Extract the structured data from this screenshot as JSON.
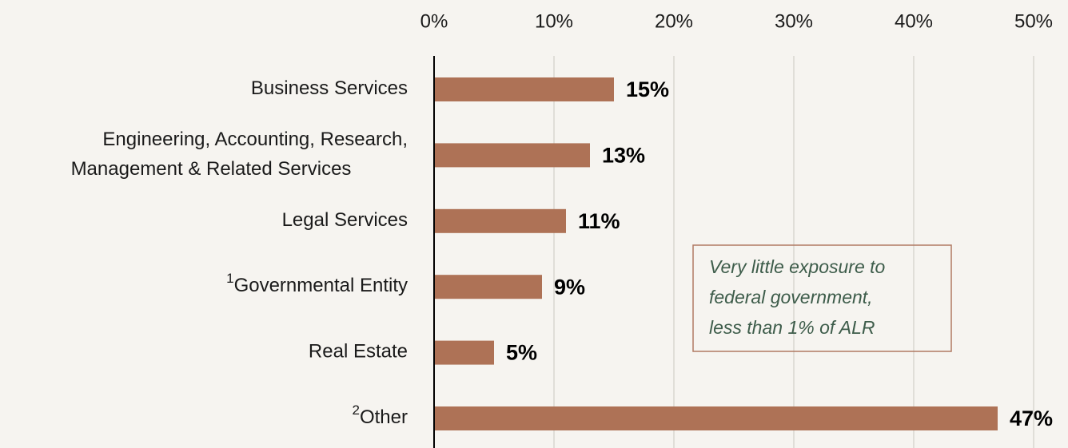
{
  "chart_data": {
    "type": "bar",
    "orientation": "horizontal",
    "categories": [
      "Business Services",
      [
        "Engineering, Accounting, Research,",
        "Management & Related Services"
      ],
      "Legal Services",
      "Governmental Entity",
      "Real Estate",
      "Other"
    ],
    "category_notes": [
      null,
      null,
      null,
      "1",
      null,
      "2"
    ],
    "values": [
      15,
      13,
      11,
      9,
      5,
      47
    ],
    "value_labels": [
      "15%",
      "13%",
      "11%",
      "9%",
      "5%",
      "47%"
    ],
    "color": "#ae7256",
    "xlim": [
      0,
      50
    ],
    "xticks": [
      {
        "value": 0,
        "label": "0%"
      },
      {
        "value": 10,
        "label": "10%"
      },
      {
        "value": 20,
        "label": "20%"
      },
      {
        "value": 30,
        "label": "30%"
      },
      {
        "value": 40,
        "label": "40%"
      },
      {
        "value": 50,
        "label": "50%"
      }
    ],
    "grid": true,
    "annotation": [
      "Very little exposure to",
      "federal government,",
      "less than 1% of ALR"
    ]
  }
}
